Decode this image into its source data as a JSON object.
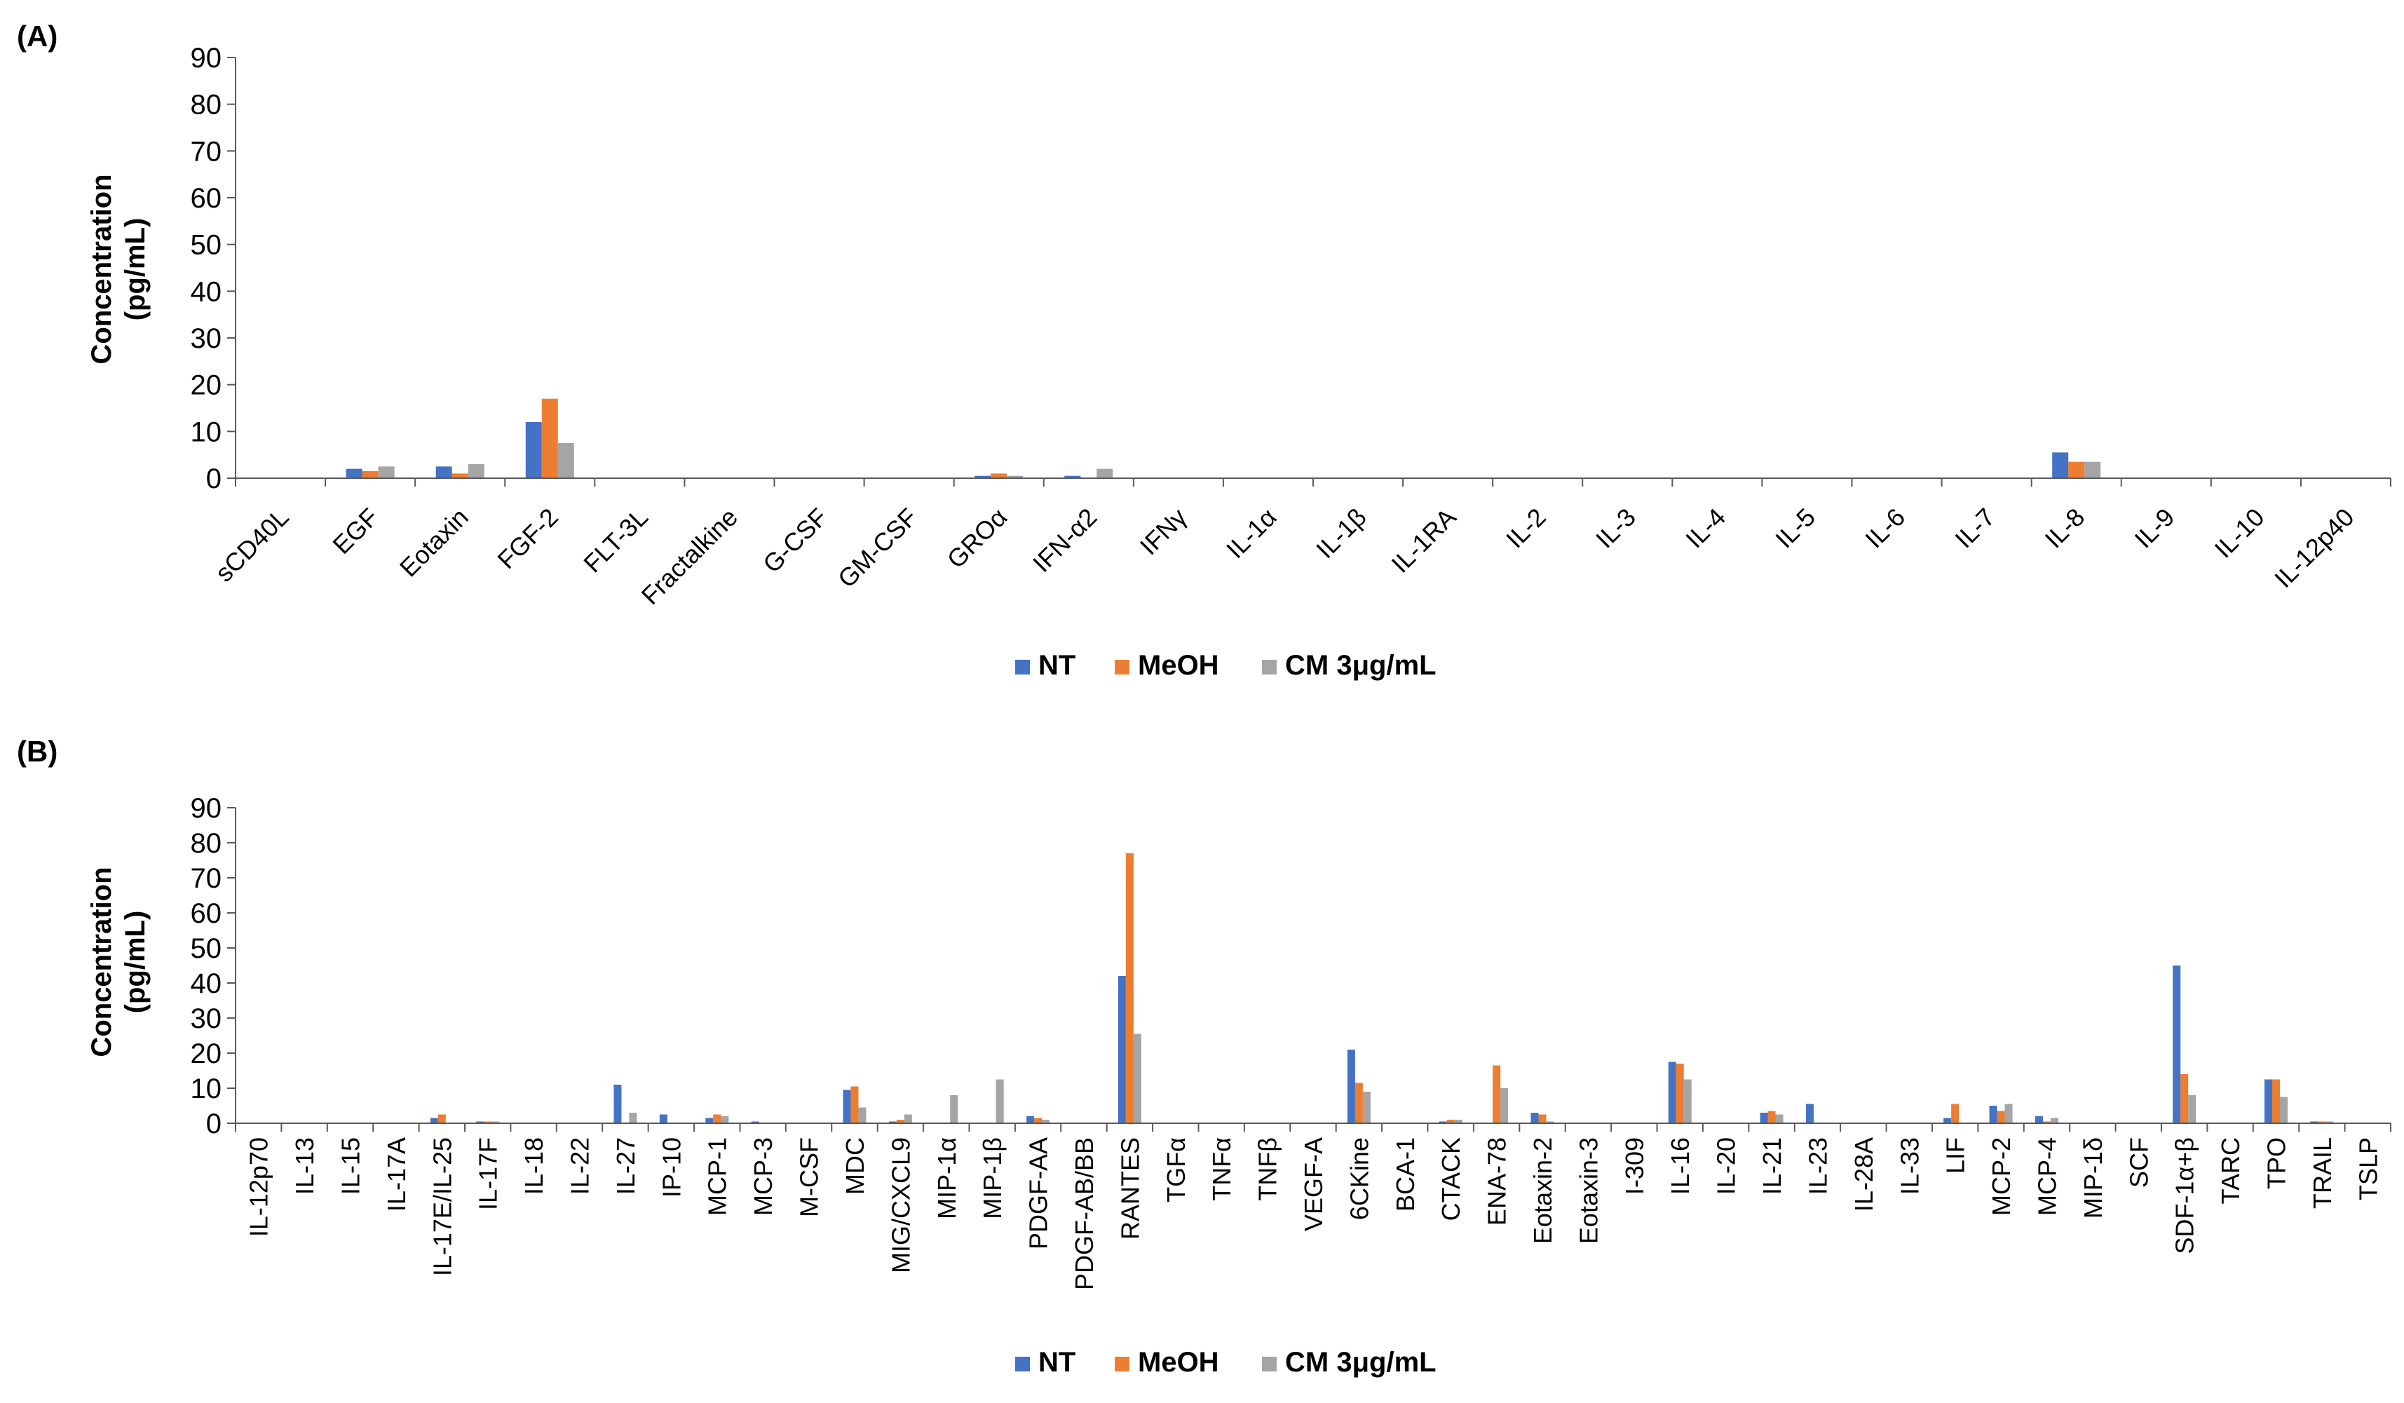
{
  "colors": {
    "NT": "#4472C4",
    "MeOH": "#ED7D31",
    "CM": "#A5A5A5",
    "axis": "#595959"
  },
  "chart_data": [
    {
      "panel": "(A)",
      "type": "bar",
      "ylabel_line1": "Concentration",
      "ylabel_line2": "(pg/mL)",
      "ylim": [
        0,
        90
      ],
      "yticks": [
        "0",
        "10",
        "20",
        "30",
        "40",
        "50",
        "60",
        "70",
        "80",
        "90"
      ],
      "legend_position": "bottom",
      "categories": [
        "sCD40L",
        "EGF",
        "Eotaxin",
        "FGF-2",
        "FLT-3L",
        "Fractalkine",
        "G-CSF",
        "GM-CSF",
        "GROα",
        "IFN-α2",
        "IFNγ",
        "IL-1α",
        "IL-1β",
        "IL-1RA",
        "IL-2",
        "IL-3",
        "IL-4",
        "IL-5",
        "IL-6",
        "IL-7",
        "IL-8",
        "IL-9",
        "IL-10",
        "IL-12p40"
      ],
      "series": [
        {
          "name": "NT",
          "values": [
            0,
            2,
            2.5,
            12,
            0,
            0,
            0,
            0,
            0.5,
            0.5,
            0,
            0,
            0,
            0,
            0,
            0,
            0,
            0,
            0,
            0,
            5.5,
            0,
            0,
            0
          ]
        },
        {
          "name": "MeOH",
          "values": [
            0,
            1.5,
            1,
            17,
            0,
            0,
            0,
            0,
            1,
            0,
            0,
            0,
            0,
            0,
            0,
            0,
            0,
            0,
            0,
            0,
            3.5,
            0,
            0,
            0
          ]
        },
        {
          "name": "CM 3μg/mL",
          "values": [
            0,
            2.5,
            3,
            7.5,
            0,
            0,
            0,
            0,
            0.5,
            2,
            0,
            0,
            0,
            0,
            0,
            0,
            0,
            0,
            0,
            0,
            3.5,
            0,
            0,
            0
          ]
        }
      ]
    },
    {
      "panel": "(B)",
      "type": "bar",
      "ylabel_line1": "Concentration",
      "ylabel_line2": "(pg/mL)",
      "ylim": [
        0,
        90
      ],
      "yticks": [
        "0",
        "10",
        "20",
        "30",
        "40",
        "50",
        "60",
        "70",
        "80",
        "90"
      ],
      "legend_position": "bottom",
      "categories": [
        "IL-12p70",
        "IL-13",
        "IL-15",
        "IL-17A",
        "IL-17E/IL-25",
        "IL-17F",
        "IL-18",
        "IL-22",
        "IL-27",
        "IP-10",
        "MCP-1",
        "MCP-3",
        "M-CSF",
        "MDC",
        "MIG/CXCL9",
        "MIP-1α",
        "MIP-1β",
        "PDGF-AA",
        "PDGF-AB/BB",
        "RANTES",
        "TGFα",
        "TNFα",
        "TNFβ",
        "VEGF-A",
        "6CKine",
        "BCA-1",
        "CTACK",
        "ENA-78",
        "Eotaxin-2",
        "Eotaxin-3",
        "I-309",
        "IL-16",
        "IL-20",
        "IL-21",
        "IL-23",
        "IL-28A",
        "IL-33",
        "LIF",
        "MCP-2",
        "MCP-4",
        "MIP-1δ",
        "SCF",
        "SDF-1α+β",
        "TARC",
        "TPO",
        "TRAIL",
        "TSLP"
      ],
      "series": [
        {
          "name": "NT",
          "values": [
            0,
            0,
            0,
            0,
            1.5,
            0.5,
            0,
            0,
            11,
            2.5,
            1.5,
            0.5,
            0,
            9.5,
            0.5,
            0,
            0,
            2,
            0,
            42,
            0,
            0,
            0,
            0,
            21,
            0,
            0.5,
            0,
            3,
            0,
            0,
            17.5,
            0,
            3,
            5.5,
            0,
            0,
            1.5,
            5,
            2,
            0,
            0,
            45,
            0,
            12.5,
            0.5,
            0
          ]
        },
        {
          "name": "MeOH",
          "values": [
            0,
            0,
            0,
            0,
            2.5,
            0.5,
            0,
            0,
            0,
            0,
            2.5,
            0,
            0,
            10.5,
            1,
            0,
            0,
            1.5,
            0,
            77,
            0,
            0,
            0,
            0,
            11.5,
            0,
            1,
            16.5,
            2.5,
            0,
            0,
            17,
            0,
            3.5,
            0,
            0,
            0,
            5.5,
            3.5,
            0.5,
            0,
            0,
            14,
            0,
            12.5,
            0.5,
            0
          ]
        },
        {
          "name": "CM 3μg/mL",
          "values": [
            0,
            0,
            0,
            0,
            0,
            0.5,
            0,
            0,
            3,
            0,
            2,
            0,
            0,
            4.5,
            2.5,
            8,
            12.5,
            1,
            0,
            25.5,
            0,
            0,
            0,
            0,
            9,
            0,
            1,
            10,
            0.5,
            0,
            0,
            12.5,
            0,
            2.5,
            0,
            0,
            0,
            0,
            5.5,
            1.5,
            0,
            0,
            8,
            0,
            7.5,
            0.5,
            0
          ]
        }
      ]
    }
  ]
}
